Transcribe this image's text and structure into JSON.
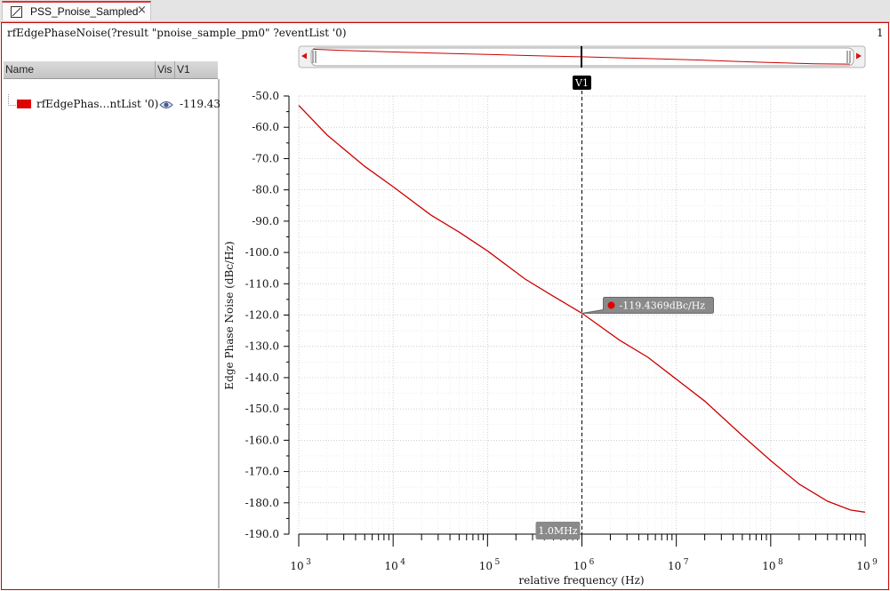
{
  "tab": {
    "title": "PSS_Pnoise_Sampled",
    "close": "×"
  },
  "expression": "rfEdgePhaseNoise(?result \"pnoise_sample_pm0\" ?eventList '0)",
  "subwindow_number": "1",
  "legend": {
    "columns": [
      "Name",
      "Vis",
      "V1"
    ],
    "trace": {
      "name": "rfEdgePhas…ntList '0)",
      "value": "-119.43",
      "color": "#e00000"
    }
  },
  "colors": {
    "trace": "#cc0000",
    "frame": "#cc0000"
  },
  "chart_data": {
    "type": "line",
    "xscale": "log",
    "xlim": [
      1000,
      1000000000
    ],
    "ylim": [
      -190,
      -50
    ],
    "xlabel": "relative frequency (Hz)",
    "ylabel": "Edge Phase Noise (dBc/Hz)",
    "xticks": [
      {
        "value": 1000,
        "base": "10",
        "exp": "3"
      },
      {
        "value": 10000,
        "base": "10",
        "exp": "4"
      },
      {
        "value": 100000,
        "base": "10",
        "exp": "5"
      },
      {
        "value": 1000000,
        "base": "10",
        "exp": "6"
      },
      {
        "value": 10000000,
        "base": "10",
        "exp": "7"
      },
      {
        "value": 100000000,
        "base": "10",
        "exp": "8"
      },
      {
        "value": 1000000000,
        "base": "10",
        "exp": "9"
      }
    ],
    "yticks": [
      -50,
      -60,
      -70,
      -80,
      -90,
      -100,
      -110,
      -120,
      -130,
      -140,
      -150,
      -160,
      -170,
      -180,
      -190
    ],
    "ytick_labels": [
      "-50.0",
      "-60.0",
      "-70.0",
      "-80.0",
      "-90.0",
      "-100.0",
      "-110.0",
      "-120.0",
      "-130.0",
      "-140.0",
      "-150.0",
      "-160.0",
      "-170.0",
      "-180.0",
      "-190.0"
    ],
    "grid": true,
    "series": [
      {
        "x": [
          1000,
          2000,
          5000,
          10000,
          25000,
          50000,
          100000,
          250000,
          500000,
          1000000,
          2500000,
          5000000,
          10000000,
          20000000,
          50000000,
          100000000,
          200000000,
          400000000,
          700000000,
          1000000000
        ],
        "y": [
          -53,
          -62.5,
          -72.5,
          -79,
          -88,
          -93.5,
          -99.5,
          -108.5,
          -114,
          -119.4,
          -128,
          -133.5,
          -140.5,
          -147.5,
          -158.5,
          -166.5,
          -174,
          -179.5,
          -182.3,
          -183
        ]
      }
    ],
    "marker": {
      "label": "V1",
      "x": 1000000,
      "readout": "1.0MHz"
    },
    "annotation": {
      "x": 1000000,
      "y": -119.4369,
      "text": "-119.4369dBc/Hz"
    }
  }
}
